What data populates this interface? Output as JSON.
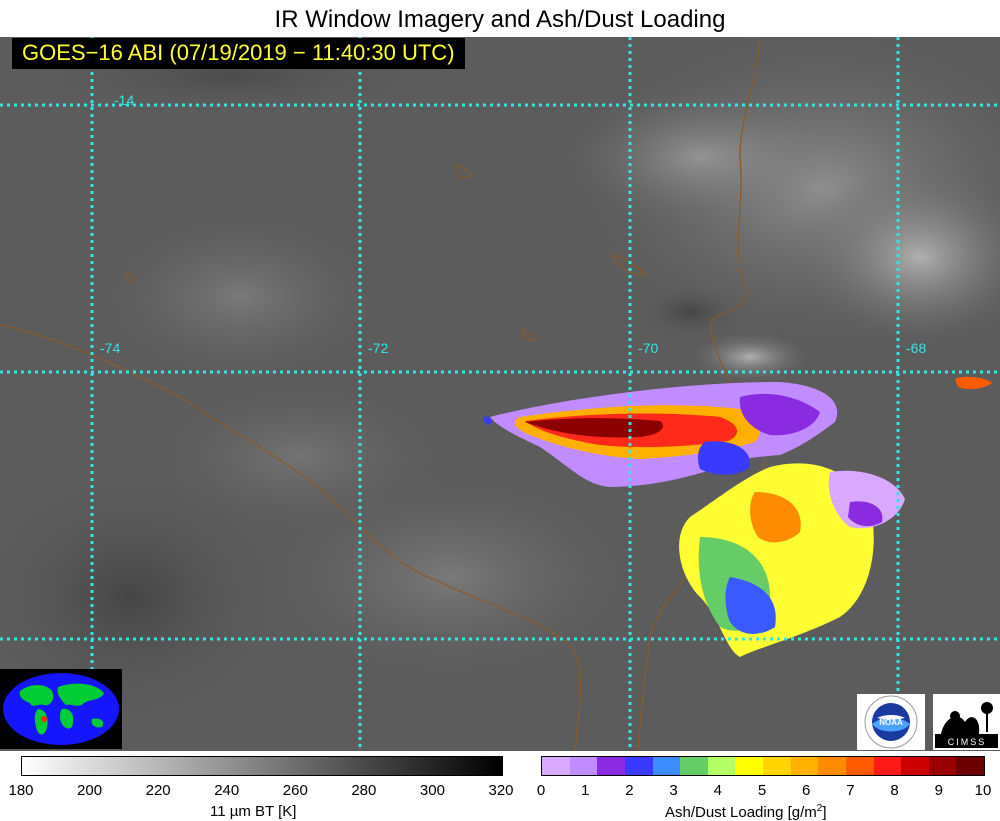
{
  "header": {
    "title": "IR Window Imagery and Ash/Dust Loading",
    "subtitle": "GOES−16 ABI (07/19/2019 − 11:40:30 UTC)"
  },
  "grid": {
    "color": "#33e6e6",
    "lat_labels": [
      "-14"
    ],
    "lon_labels": [
      "-74",
      "-72",
      "-70",
      "-68"
    ]
  },
  "colors": {
    "background": "#5e5e5e",
    "border": "#8b5a2b",
    "ash_scale": [
      "#d9a8ff",
      "#c08cff",
      "#8a2be2",
      "#3a3aff",
      "#3a8cff",
      "#66cc66",
      "#b3ff66",
      "#ffff00",
      "#ffd400",
      "#ffb000",
      "#ff8c00",
      "#ff5a00",
      "#ff1a1a",
      "#cc0000",
      "#990000",
      "#6b0000"
    ]
  },
  "logos": {
    "globe": "globe-map-icon",
    "noaa": "NOAA",
    "cimss": "CIMSS"
  },
  "colorbar_bt": {
    "ticks": [
      "180",
      "200",
      "220",
      "240",
      "260",
      "280",
      "300",
      "320"
    ],
    "unit": "11 µm BT [K]"
  },
  "colorbar_ash": {
    "ticks": [
      "0",
      "1",
      "2",
      "3",
      "4",
      "5",
      "6",
      "7",
      "8",
      "9",
      "10"
    ],
    "unit": "Ash/Dust Loading [g/m",
    "unit_sup": "2",
    "unit_end": "]"
  }
}
